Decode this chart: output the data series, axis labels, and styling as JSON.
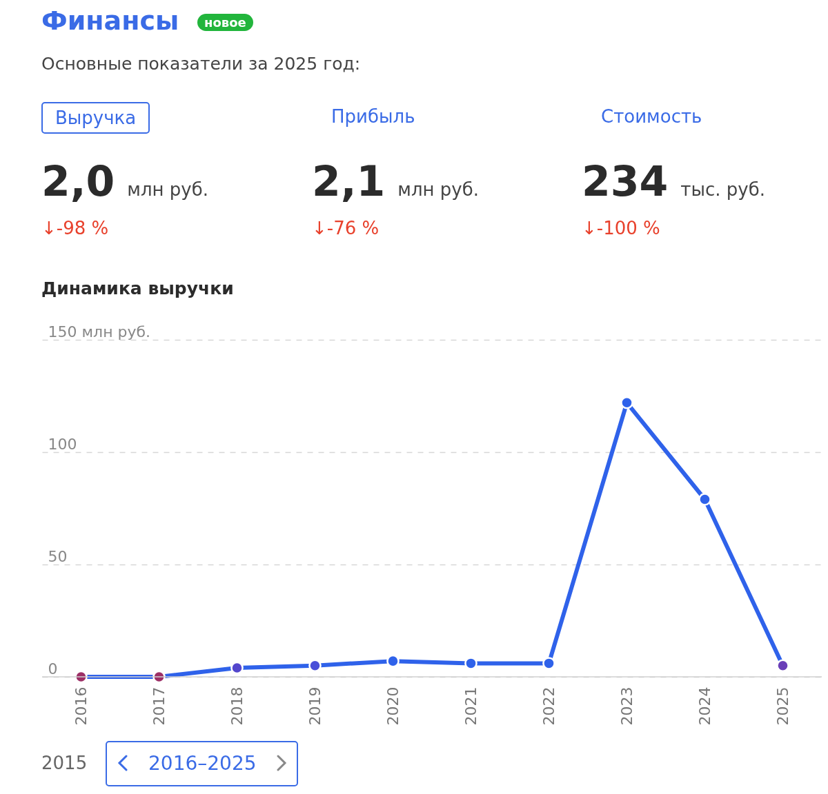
{
  "chart_data": {
    "type": "line",
    "title": "Финансы",
    "subtitle": "Основные показатели за 2025 год:",
    "annotations": [
      "новое",
      "Выручка",
      "Прибыль",
      "Стоимость",
      "2,0",
      "млн руб.",
      "↓-98 %",
      "2,1",
      "млн руб.",
      "↓-76 %",
      "234",
      "тыс. руб.",
      "↓-100 %",
      "Динамика выручки",
      "2015",
      "2016–2025"
    ],
    "categories": [
      "2016",
      "2017",
      "2018",
      "2019",
      "2020",
      "2021",
      "2022",
      "2023",
      "2024",
      "2025"
    ],
    "series": [
      {
        "color": "#2f62ea",
        "colors": [
          "#9c2f66",
          "#9c2f66",
          "#5346cc",
          "#4a4fd8",
          "#2f62ea",
          "#2f62ea",
          "#2f62ea",
          "#2f62ea",
          "#2f62ea",
          "#6a3fb8"
        ],
        "values": [
          0,
          0,
          4,
          5,
          7,
          6,
          6,
          122,
          79,
          5
        ]
      }
    ],
    "ylim": [
      0,
      150
    ],
    "yticks": [
      0,
      50,
      100,
      {
        "value": 150,
        "label": "150 млн руб."
      }
    ],
    "grid": "y",
    "marker": "circle",
    "line_style": "solid"
  }
}
